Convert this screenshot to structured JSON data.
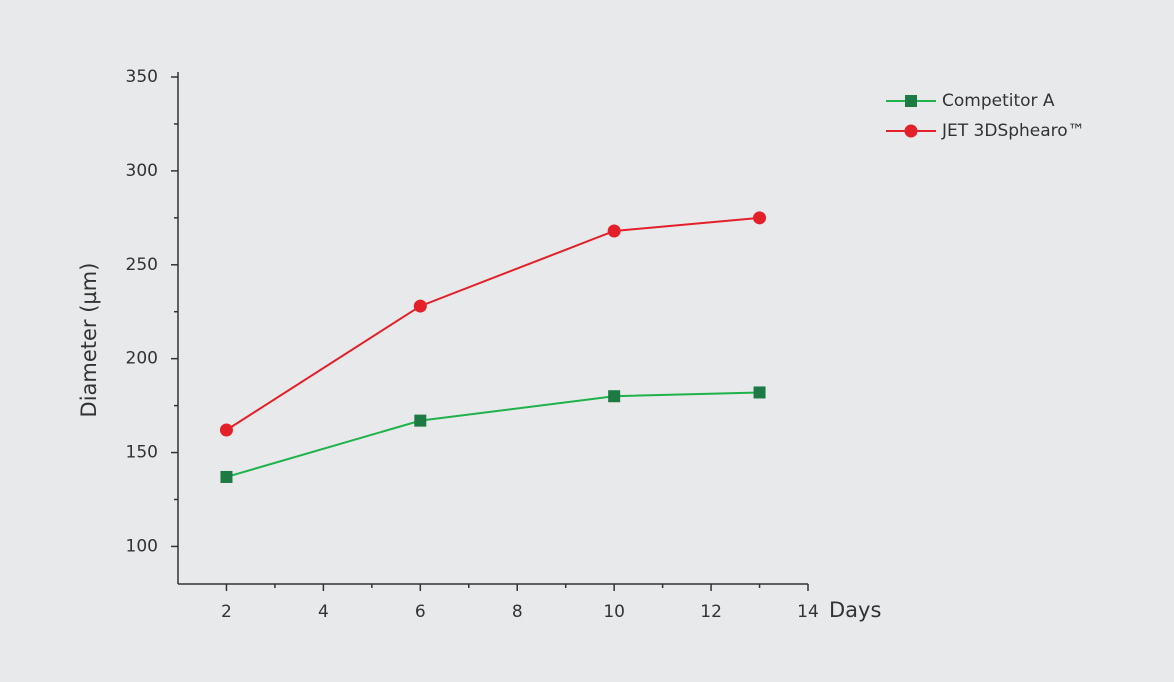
{
  "chart_data": {
    "type": "line",
    "y_label": "Diameter (µm)",
    "x_label": "Days",
    "x": [
      2,
      6,
      10,
      13
    ],
    "series": [
      {
        "name": "Competitor A",
        "color": "#1fb24a",
        "marker_color": "#1e7a45",
        "marker": "square",
        "values": [
          137,
          167,
          180,
          182
        ]
      },
      {
        "name": "JET 3DSphearo™",
        "color": "#e3202a",
        "marker_color": "#e3202a",
        "marker": "circle",
        "values": [
          162,
          228,
          268,
          275
        ]
      }
    ],
    "xlim": [
      1,
      14
    ],
    "xticks": [
      2,
      4,
      6,
      8,
      10,
      12,
      14
    ],
    "ylim": [
      80,
      350
    ],
    "yticks": [
      100,
      150,
      200,
      250,
      300,
      350
    ],
    "legend": "top-right"
  }
}
